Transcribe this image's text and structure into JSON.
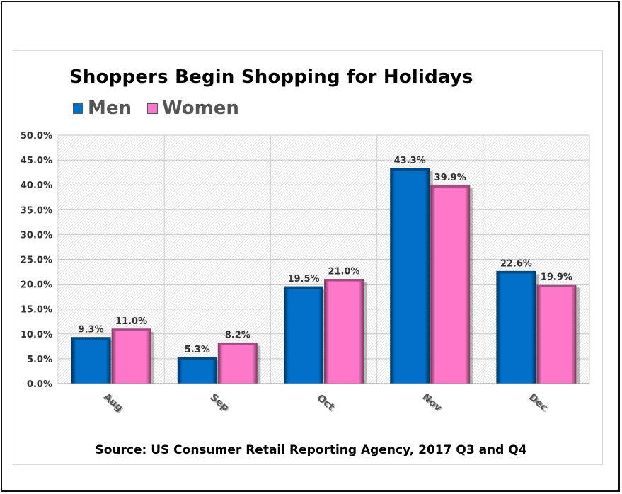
{
  "chart_data": {
    "type": "bar",
    "title": "Shoppers Begin Shopping for Holidays",
    "categories": [
      "Aug",
      "Sep",
      "Oct",
      "Nov",
      "Dec"
    ],
    "series": [
      {
        "name": "Men",
        "values": [
          9.3,
          5.3,
          19.5,
          43.3,
          22.6
        ],
        "labels": [
          "9.3%",
          "5.3%",
          "19.5%",
          "43.3%",
          "22.6%"
        ],
        "color": "#0070c8"
      },
      {
        "name": "Women",
        "values": [
          11.0,
          8.2,
          21.0,
          39.9,
          19.9
        ],
        "labels": [
          "11.0%",
          "8.2%",
          "21.0%",
          "39.9%",
          "19.9%"
        ],
        "color": "#ff77c8"
      }
    ],
    "ylim": [
      0,
      50
    ],
    "yticks": [
      0,
      5,
      10,
      15,
      20,
      25,
      30,
      35,
      40,
      45,
      50
    ],
    "ytick_labels": [
      "0.0%",
      "5.0%",
      "10.0%",
      "15.0%",
      "20.0%",
      "25.0%",
      "30.0%",
      "35.0%",
      "40.0%",
      "45.0%",
      "50.0%"
    ],
    "grid": true,
    "legend_position": "top-left",
    "xlabel": "",
    "ylabel": ""
  },
  "source": "Source: US Consumer Retail Reporting Agency, 2017 Q3 and Q4"
}
